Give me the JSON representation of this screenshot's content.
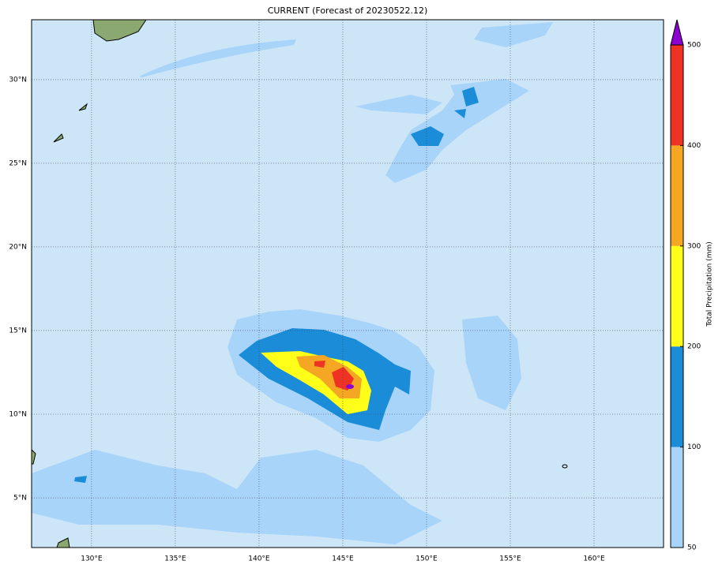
{
  "map": {
    "title": "CURRENT (Forecast of 20230522.12)",
    "xlim": [
      126.42,
      164.15
    ],
    "ylim": [
      2.03,
      33.58
    ],
    "xticks": [
      {
        "value": 130,
        "label": "130°E"
      },
      {
        "value": 135,
        "label": "135°E"
      },
      {
        "value": 140,
        "label": "140°E"
      },
      {
        "value": 145,
        "label": "145°E"
      },
      {
        "value": 150,
        "label": "150°E"
      },
      {
        "value": 155,
        "label": "155°E"
      },
      {
        "value": 160,
        "label": "160°E"
      }
    ],
    "yticks": [
      {
        "value": 5,
        "label": "5°N"
      },
      {
        "value": 10,
        "label": "10°N"
      },
      {
        "value": 15,
        "label": "15°N"
      },
      {
        "value": 20,
        "label": "20°N"
      },
      {
        "value": 25,
        "label": "25°N"
      },
      {
        "value": 30,
        "label": "30°N"
      }
    ],
    "grid": true,
    "colorbar": {
      "label": "Total Precipitation (mm)",
      "levels": [
        50,
        100,
        200,
        300,
        400,
        500
      ],
      "colors": [
        "#a8d4fa",
        "#1a8cd8",
        "#ffff1a",
        "#f5a623",
        "#ee3324"
      ],
      "extend_color": "#8c00d0"
    }
  }
}
